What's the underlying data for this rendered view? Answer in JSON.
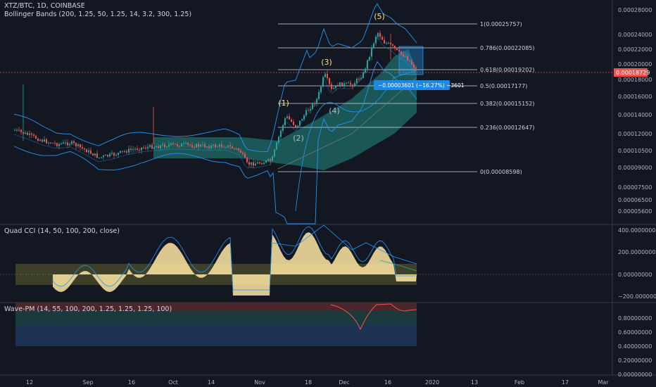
{
  "header": {
    "symbol_line": "XTZ/BTC, 1D, COINBASE",
    "indicator_line": "Bollinger Bands (200, 1.25, 50, 1.25, 14, 3.2, 300, 1.25)"
  },
  "price_axis": {
    "ticks": [
      "0.00028000",
      "0.00024000",
      "0.00022000",
      "0.00020000",
      "0.00018000",
      "0.00016000",
      "0.00014000",
      "0.00012000",
      "0.00010500",
      "0.00009000",
      "0.00007500",
      "0.00006500",
      "0.00005600"
    ],
    "current_price": "0.00018729"
  },
  "fib_levels": [
    {
      "label": "1(0.00025757)"
    },
    {
      "label": "0.786(0.00022085)"
    },
    {
      "label": "0.618(0.00019202)"
    },
    {
      "label": "0.5(0.00017177)"
    },
    {
      "label": "0.382(0.00015152)"
    },
    {
      "label": "0.236(0.00012647)"
    },
    {
      "label": "0(0.00008598)"
    }
  ],
  "waves": [
    "(1)",
    "(2)",
    "(3)",
    "(4)",
    "(5)"
  ],
  "measure_label": "−0.00003601 (−16.27%) −3601",
  "cci_panel": {
    "title": "Quad CCI (14, 50, 100, 200, close)",
    "ticks": [
      "400.00000000",
      "200.00000000",
      "0.00000000",
      "−200.00000000"
    ]
  },
  "wave_panel": {
    "title": "Wave-PM (14, 55, 100, 200, 1.25, 1.25, 1.25, 100)",
    "ticks": [
      "0.80000000",
      "0.60000000",
      "0.40000000",
      "0.20000000",
      "0.00000000"
    ]
  },
  "time_axis": {
    "labels": [
      "12",
      "Sep",
      "16",
      "Oct",
      "14",
      "Nov",
      "18",
      "Dec",
      "16",
      "2020",
      "13",
      "Feb",
      "17",
      "Mar"
    ]
  },
  "colors": {
    "background": "#131722",
    "up": "#26a69a",
    "down": "#ef5350",
    "band": "#2196f3",
    "fill": "#26a69a",
    "cci_fill": "#ffe8a3",
    "current_price": "#ef5350"
  }
}
